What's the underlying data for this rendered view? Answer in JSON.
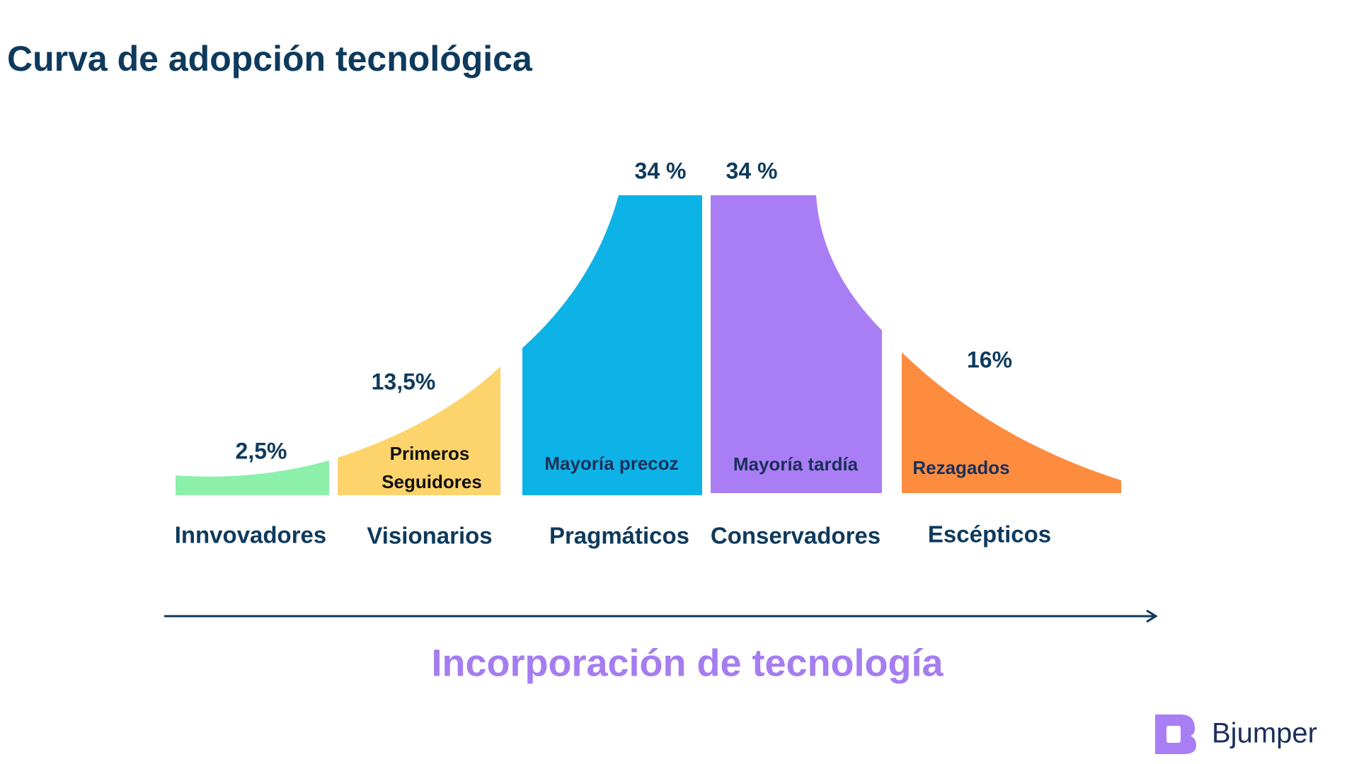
{
  "header": {
    "title": "Curva de adopción tecnológica"
  },
  "segments": [
    {
      "percent": "2,5%",
      "inner_label": [],
      "name": "Innvovadores"
    },
    {
      "percent": "13,5%",
      "inner_label": [
        "Primeros",
        "Seguidores"
      ],
      "name": "Visionarios"
    },
    {
      "percent": "34 %",
      "inner_label": [
        "Mayoría precoz"
      ],
      "name": "Pragmáticos"
    },
    {
      "percent": "34 %",
      "inner_label": [
        "Mayoría tardía"
      ],
      "name": "Conservadores"
    },
    {
      "percent": "16%",
      "inner_label": [
        "Rezagados"
      ],
      "name": "Escépticos"
    }
  ],
  "axis_label": "Incorporación de tecnología",
  "brand": "Bjumper"
}
